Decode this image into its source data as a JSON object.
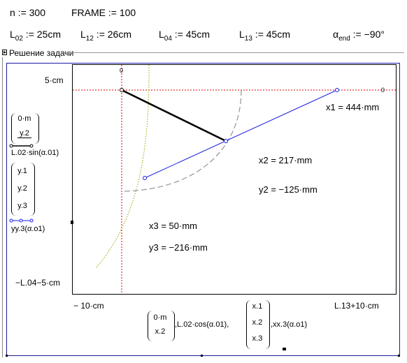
{
  "defs": {
    "n": "n := 300",
    "frame": "FRAME := 100",
    "L02": {
      "base": "L",
      "sub": "02",
      "rest": " := 25cm"
    },
    "L12": {
      "base": "L",
      "sub": "12",
      "rest": " := 26cm"
    },
    "L04": {
      "base": "L",
      "sub": "04",
      "rest": " := 45cm"
    },
    "L13": {
      "base": "L",
      "sub": "13",
      "rest": " := 45cm"
    },
    "alpha": {
      "base": "α",
      "sub": "end",
      "rest": " := −90°"
    }
  },
  "region": {
    "title": "Решение задачи"
  },
  "plot": {
    "y_top": "5·cm",
    "y_bottom": "−L.04−5·cm",
    "x_left": "− 10·cm",
    "x_right": "L.13+10·cm",
    "marker_top": "0",
    "marker_right": "0",
    "y_expr_1": [
      "0·m",
      "y.2"
    ],
    "y_expr_2": "L.02·sin(α.01)",
    "y_expr_3": [
      "y.1",
      "y.2",
      "y.3"
    ],
    "y_expr_4": "yy.3(α.o1)",
    "x_expr_1": [
      "0·m",
      "x.2"
    ],
    "x_expr_2": ",L.02·cos(α.01),",
    "x_expr_3": [
      "x.1",
      "x.2",
      "x.3"
    ],
    "x_expr_4": ",xx.3(α.o1)"
  },
  "results": {
    "x1": "x1 = 444·mm",
    "x2": "x2 = 217·mm",
    "y2": "y2 = −125·mm",
    "x3": "x3 = 50·mm",
    "y3": "y3 = −216·mm"
  },
  "colors": {
    "link": "#000000",
    "blue": "#1a1ae6",
    "red": "#e60000",
    "gray": "#808080",
    "olive": "#a0a000"
  }
}
